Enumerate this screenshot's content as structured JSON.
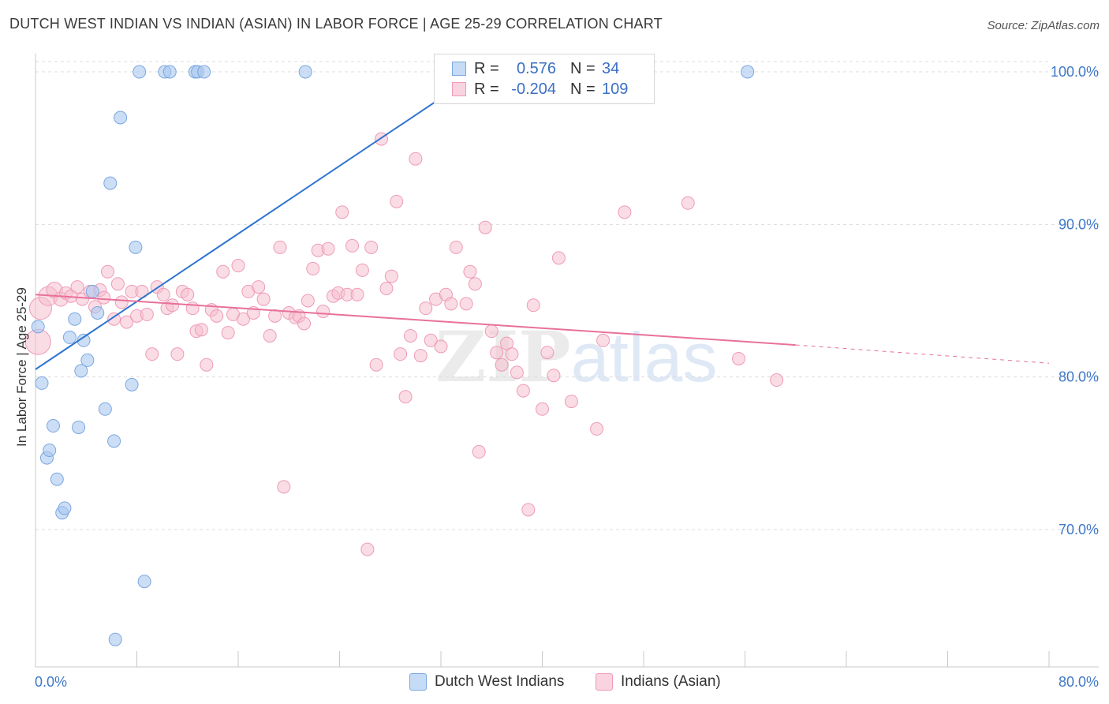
{
  "header": {
    "title": "DUTCH WEST INDIAN VS INDIAN (ASIAN) IN LABOR FORCE | AGE 25-29 CORRELATION CHART",
    "source": "Source: ZipAtlas.com"
  },
  "watermark": {
    "zip": "ZIP",
    "atlas": "atlas"
  },
  "legend": {
    "rows": [
      {
        "r_label": "R =",
        "r_value": "0.576",
        "n_label": "N =",
        "n_value": "34"
      },
      {
        "r_label": "R =",
        "r_value": "-0.204",
        "n_label": "N =",
        "n_value": "109"
      }
    ]
  },
  "bottom_legend": {
    "series1": "Dutch West Indians",
    "series2": "Indians (Asian)"
  },
  "colors": {
    "blue_fill": "#aac8f0",
    "blue_stroke": "#7aa7df",
    "blue_line": "#2f74d0",
    "pink_fill": "#f6bfd0",
    "pink_stroke": "#ee9bb6",
    "pink_line": "#e8719a",
    "axis_text": "#3f78c8",
    "grid": "#dcdcdc"
  },
  "chart_data": {
    "type": "scatter",
    "title": "DUTCH WEST INDIAN VS INDIAN (ASIAN) IN LABOR FORCE | AGE 25-29 CORRELATION CHART",
    "xlabel": "",
    "ylabel": "In Labor Force | Age 25-29",
    "xlim": [
      0,
      80
    ],
    "ylim": [
      61,
      101.5
    ],
    "x_tick_labels": [
      "0.0%",
      "80.0%"
    ],
    "y_ticks": [
      70,
      80,
      90,
      100
    ],
    "y_tick_labels": [
      "70.0%",
      "80.0%",
      "90.0%",
      "100.0%"
    ],
    "grid": true,
    "legend_position": "top-center",
    "series": [
      {
        "name": "Dutch West Indians",
        "color": "#aac8f0",
        "trend": {
          "x": [
            0,
            36
          ],
          "y": [
            80.5,
            100.5
          ],
          "dashed_to": null
        },
        "points": [
          [
            0.2,
            83.3,
            8
          ],
          [
            0.5,
            79.6,
            8
          ],
          [
            0.9,
            74.7,
            8
          ],
          [
            1.1,
            75.2,
            8
          ],
          [
            1.4,
            76.8,
            8
          ],
          [
            1.7,
            73.3,
            8
          ],
          [
            2.1,
            71.1,
            8
          ],
          [
            2.3,
            71.4,
            8
          ],
          [
            2.7,
            82.6,
            8
          ],
          [
            3.1,
            83.8,
            8
          ],
          [
            3.4,
            76.7,
            8
          ],
          [
            3.6,
            80.4,
            8
          ],
          [
            3.8,
            82.4,
            8
          ],
          [
            4.1,
            81.1,
            8
          ],
          [
            4.5,
            85.6,
            8
          ],
          [
            4.9,
            84.2,
            8
          ],
          [
            5.5,
            77.9,
            8
          ],
          [
            5.9,
            92.7,
            8
          ],
          [
            6.2,
            75.8,
            8
          ],
          [
            6.7,
            97.0,
            8
          ],
          [
            7.6,
            79.5,
            8
          ],
          [
            7.9,
            88.5,
            8
          ],
          [
            8.2,
            100.0,
            8
          ],
          [
            8.6,
            66.6,
            8
          ],
          [
            10.2,
            100.0,
            8
          ],
          [
            10.6,
            100.0,
            8
          ],
          [
            12.6,
            100.0,
            8
          ],
          [
            12.8,
            100.0,
            8
          ],
          [
            13.3,
            100.0,
            8
          ],
          [
            21.3,
            100.0,
            8
          ],
          [
            56.2,
            100.0,
            8
          ],
          [
            6.3,
            62.8,
            8
          ],
          [
            36.0,
            100.0,
            8
          ],
          [
            35.2,
            100.0,
            8
          ]
        ]
      },
      {
        "name": "Indians (Asian)",
        "color": "#f6bfd0",
        "trend": {
          "x": [
            0,
            60
          ],
          "y": [
            85.4,
            82.1
          ],
          "dashed_to": [
            80,
            80.9
          ]
        },
        "points": [
          [
            0.2,
            82.3,
            16
          ],
          [
            0.4,
            84.5,
            14
          ],
          [
            1.0,
            85.3,
            12
          ],
          [
            1.5,
            85.7,
            10
          ],
          [
            2.0,
            85.1,
            9
          ],
          [
            2.4,
            85.5,
            8
          ],
          [
            2.8,
            85.3,
            8
          ],
          [
            3.3,
            85.9,
            8
          ],
          [
            3.7,
            85.1,
            8
          ],
          [
            4.3,
            85.6,
            8
          ],
          [
            4.7,
            84.6,
            8
          ],
          [
            5.1,
            85.7,
            8
          ],
          [
            5.4,
            85.2,
            8
          ],
          [
            5.7,
            86.9,
            8
          ],
          [
            6.2,
            83.8,
            8
          ],
          [
            6.5,
            86.1,
            8
          ],
          [
            6.8,
            84.9,
            8
          ],
          [
            7.2,
            83.6,
            8
          ],
          [
            7.6,
            85.6,
            8
          ],
          [
            8.0,
            84.0,
            8
          ],
          [
            8.4,
            85.6,
            8
          ],
          [
            8.8,
            84.1,
            8
          ],
          [
            9.2,
            81.5,
            8
          ],
          [
            9.6,
            85.9,
            8
          ],
          [
            10.1,
            85.4,
            8
          ],
          [
            10.4,
            84.5,
            8
          ],
          [
            10.8,
            84.7,
            8
          ],
          [
            11.2,
            81.5,
            8
          ],
          [
            11.6,
            85.6,
            8
          ],
          [
            12.0,
            85.4,
            8
          ],
          [
            12.4,
            84.5,
            8
          ],
          [
            12.7,
            83.0,
            8
          ],
          [
            13.1,
            83.1,
            8
          ],
          [
            13.5,
            80.8,
            8
          ],
          [
            13.9,
            84.4,
            8
          ],
          [
            14.3,
            84.0,
            8
          ],
          [
            14.8,
            86.9,
            8
          ],
          [
            15.2,
            82.9,
            8
          ],
          [
            15.6,
            84.1,
            8
          ],
          [
            16.0,
            87.3,
            8
          ],
          [
            16.4,
            83.8,
            8
          ],
          [
            16.8,
            85.6,
            8
          ],
          [
            17.2,
            84.2,
            8
          ],
          [
            17.6,
            85.9,
            8
          ],
          [
            18.0,
            85.1,
            8
          ],
          [
            18.5,
            82.7,
            8
          ],
          [
            18.9,
            84.0,
            8
          ],
          [
            19.3,
            88.5,
            8
          ],
          [
            19.6,
            72.8,
            8
          ],
          [
            20.0,
            84.2,
            8
          ],
          [
            20.5,
            83.9,
            8
          ],
          [
            20.8,
            84.0,
            8
          ],
          [
            21.2,
            83.5,
            8
          ],
          [
            21.5,
            85.0,
            8
          ],
          [
            21.9,
            87.1,
            8
          ],
          [
            22.3,
            88.3,
            8
          ],
          [
            22.7,
            84.3,
            8
          ],
          [
            23.1,
            88.4,
            8
          ],
          [
            23.5,
            85.3,
            8
          ],
          [
            23.9,
            85.5,
            8
          ],
          [
            24.2,
            90.8,
            8
          ],
          [
            24.6,
            85.4,
            8
          ],
          [
            25.0,
            88.6,
            8
          ],
          [
            25.4,
            85.4,
            8
          ],
          [
            25.8,
            87.0,
            8
          ],
          [
            26.2,
            68.7,
            8
          ],
          [
            26.5,
            88.5,
            8
          ],
          [
            26.9,
            80.8,
            8
          ],
          [
            27.3,
            95.6,
            8
          ],
          [
            27.7,
            85.8,
            8
          ],
          [
            28.1,
            86.6,
            8
          ],
          [
            28.5,
            91.5,
            8
          ],
          [
            28.8,
            81.5,
            8
          ],
          [
            29.2,
            78.7,
            8
          ],
          [
            29.6,
            82.7,
            8
          ],
          [
            30.0,
            94.3,
            8
          ],
          [
            30.4,
            81.4,
            8
          ],
          [
            30.8,
            84.5,
            8
          ],
          [
            31.2,
            82.4,
            8
          ],
          [
            31.6,
            85.1,
            8
          ],
          [
            32.0,
            82.0,
            8
          ],
          [
            32.4,
            85.4,
            8
          ],
          [
            32.8,
            84.8,
            8
          ],
          [
            33.2,
            88.5,
            8
          ],
          [
            34.0,
            84.8,
            8
          ],
          [
            34.3,
            86.9,
            8
          ],
          [
            34.7,
            86.1,
            8
          ],
          [
            35.0,
            75.1,
            8
          ],
          [
            35.5,
            89.8,
            8
          ],
          [
            36.0,
            83.0,
            8
          ],
          [
            36.4,
            81.6,
            8
          ],
          [
            36.8,
            80.8,
            8
          ],
          [
            37.2,
            82.2,
            8
          ],
          [
            37.6,
            81.5,
            8
          ],
          [
            38.0,
            80.3,
            8
          ],
          [
            38.5,
            79.1,
            8
          ],
          [
            38.9,
            71.3,
            8
          ],
          [
            39.3,
            84.7,
            8
          ],
          [
            40.0,
            77.9,
            8
          ],
          [
            40.4,
            81.6,
            8
          ],
          [
            40.9,
            80.1,
            8
          ],
          [
            41.3,
            87.8,
            8
          ],
          [
            42.3,
            78.4,
            8
          ],
          [
            44.3,
            76.6,
            8
          ],
          [
            44.8,
            82.4,
            8
          ],
          [
            46.5,
            90.8,
            8
          ],
          [
            51.5,
            91.4,
            8
          ],
          [
            55.5,
            81.2,
            8
          ],
          [
            58.5,
            79.8,
            8
          ]
        ]
      }
    ]
  }
}
